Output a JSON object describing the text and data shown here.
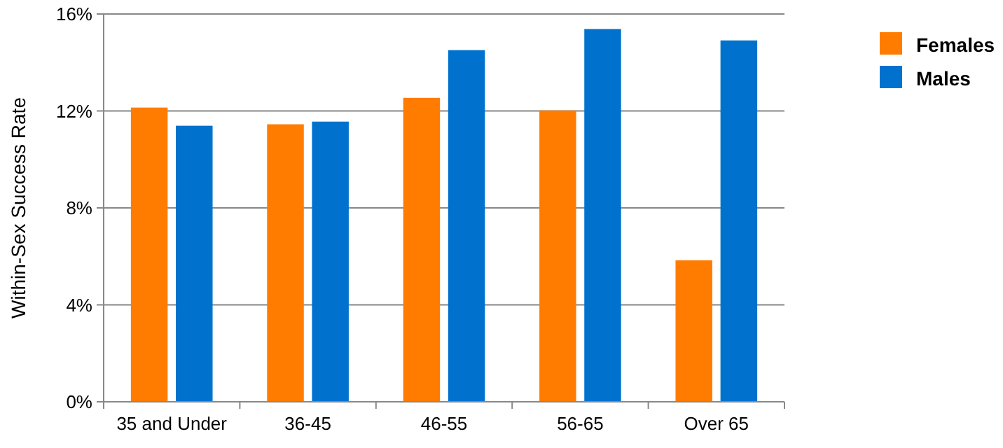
{
  "chart_data": {
    "type": "bar",
    "ylabel": "Within-Sex Success Rate",
    "categories": [
      "35 and Under",
      "36-45",
      "46-55",
      "56-65",
      "Over 65"
    ],
    "series": [
      {
        "name": "Females",
        "color": "#ff7c00",
        "values": [
          12.14,
          11.45,
          12.54,
          12.02,
          5.84
        ]
      },
      {
        "name": "Males",
        "color": "#0072ce",
        "values": [
          11.39,
          11.56,
          14.51,
          15.38,
          14.91
        ]
      }
    ],
    "ylim": [
      0,
      16
    ],
    "yticks": [
      {
        "value": 0,
        "label": "0%"
      },
      {
        "value": 4,
        "label": "4%"
      },
      {
        "value": 8,
        "label": "8%"
      },
      {
        "value": 12,
        "label": "12%"
      },
      {
        "value": 16,
        "label": "16%"
      }
    ],
    "grid": "y",
    "legend": "top right"
  }
}
